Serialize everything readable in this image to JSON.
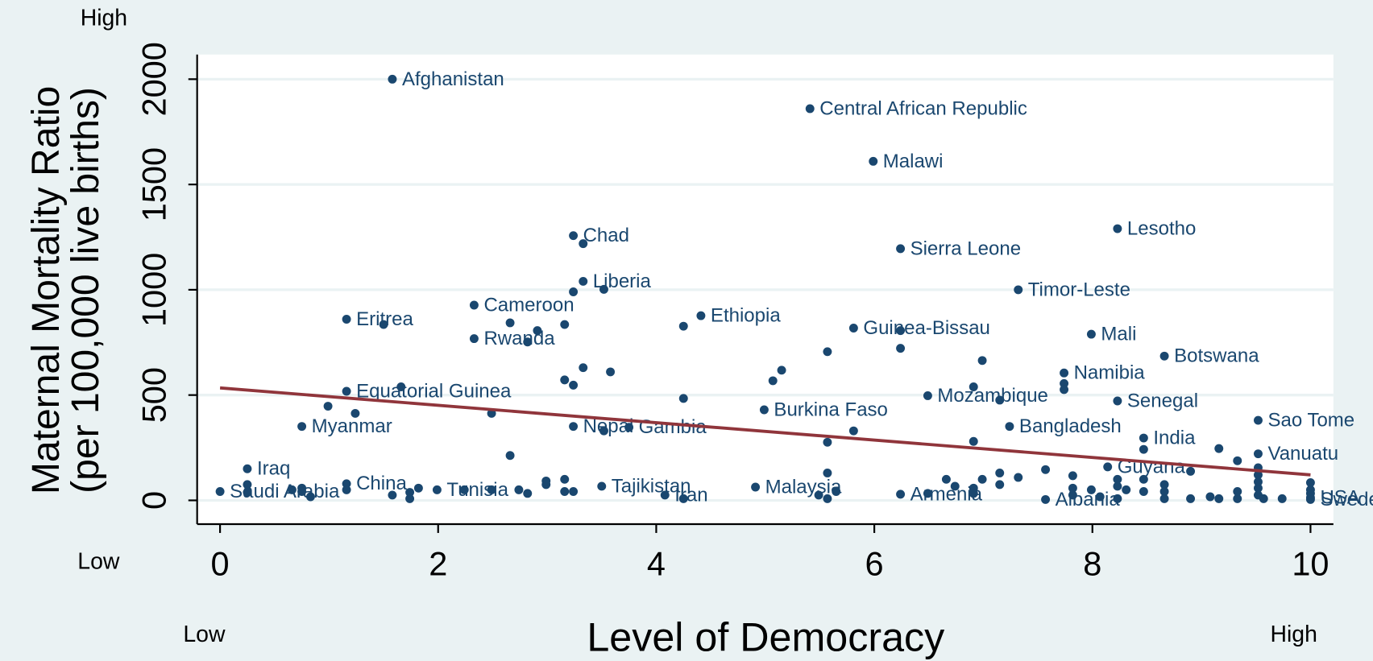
{
  "chart_data": {
    "type": "scatter",
    "xlabel": "Level of Democracy",
    "ylabel": [
      "Maternal Mortality Ratio",
      "(per 100,000 live births)"
    ],
    "annotations": {
      "y_high": "High",
      "y_low": "Low",
      "x_low": "Low",
      "x_high": "High"
    },
    "color": "#1a476f",
    "x": [
      1.58,
      5.41,
      5.99,
      3.24,
      8.23,
      6.24,
      3.33,
      7.32,
      1.16,
      2.33,
      4.41,
      5.81,
      2.33,
      7.99,
      7.74,
      8.66,
      1.16,
      6.49,
      8.23,
      3.75,
      4.99,
      7.24,
      0.75,
      9.52,
      8.47,
      8.14,
      9.52,
      3.24,
      0.25,
      1.16,
      1.99,
      3.5,
      4.91,
      4.08,
      0,
      6.24,
      7.57,
      10,
      10,
      3.33,
      1.5,
      2.66,
      2.91,
      2.82,
      3.16,
      3.24,
      3.52,
      4.25,
      6.24,
      6.24,
      5.57,
      6.99,
      7.74,
      7.74,
      3.16,
      3.24,
      3.33,
      3.58,
      1.66,
      0.99,
      1.24,
      2.49,
      4.25,
      5.07,
      5.15,
      6.91,
      7.15,
      5.81,
      5.57,
      6.91,
      3.52,
      2.66,
      9.16,
      9.33,
      8.9,
      8.47,
      9.52,
      0.25,
      0.25,
      0.66,
      0.75,
      0.75,
      0.83,
      1.16,
      1.58,
      1.74,
      1.74,
      1.82,
      2.24,
      2.49,
      2.74,
      2.82,
      2.99,
      2.99,
      3.16,
      3.16,
      3.24,
      4.25,
      5.49,
      5.57,
      5.65,
      5.57,
      6.49,
      6.66,
      6.74,
      6.91,
      6.91,
      6.99,
      7.15,
      7.15,
      7.32,
      7.57,
      7.82,
      7.82,
      7.82,
      7.99,
      8.07,
      8.23,
      8.23,
      8.23,
      8.31,
      8.47,
      8.47,
      8.66,
      8.66,
      8.66,
      8.9,
      9.08,
      9.16,
      9.33,
      9.33,
      9.52,
      9.52,
      9.57,
      9.74,
      10,
      10,
      10,
      9.52,
      9.52
    ],
    "y": [
      2000,
      1860,
      1610,
      1257,
      1290,
      1195,
      1040,
      1000,
      860,
      927,
      877,
      818,
      768,
      789,
      605,
      685,
      518,
      497,
      472,
      347,
      430,
      351,
      351,
      380,
      296,
      159,
      221,
      351,
      150,
      79,
      50,
      67,
      63,
      25,
      42,
      29,
      4,
      13,
      4,
      1219,
      835,
      843,
      806,
      752,
      835,
      990,
      1002,
      827,
      806,
      722,
      706,
      664,
      555,
      526,
      572,
      547,
      630,
      610,
      539,
      447,
      413,
      413,
      484,
      568,
      618,
      539,
      476,
      330,
      276,
      280,
      330,
      213,
      246,
      188,
      138,
      242,
      155,
      38,
      75,
      50,
      58,
      42,
      17,
      50,
      25,
      38,
      8,
      58,
      50,
      50,
      50,
      33,
      75,
      92,
      100,
      42,
      42,
      8,
      25,
      8,
      42,
      130,
      33,
      100,
      67,
      58,
      33,
      100,
      75,
      130,
      109,
      146,
      117,
      58,
      25,
      50,
      17,
      8,
      100,
      67,
      50,
      100,
      42,
      75,
      42,
      8,
      8,
      17,
      8,
      8,
      42,
      58,
      25,
      8,
      8,
      84,
      50,
      33,
      88,
      121
    ],
    "labels": [
      "Afghanistan",
      "Central African Republic",
      "Malawi",
      "Chad",
      "Lesotho",
      "Sierra Leone",
      "Liberia",
      "Timor-Leste",
      "Eritrea",
      "Cameroon",
      "Ethiopia",
      "Guinea-Bissau",
      "Rwanda",
      "Mali",
      "Namibia",
      "Botswana",
      "Equatorial Guinea",
      "Mozambique",
      "Senegal",
      "Gambia",
      "Burkina Faso",
      "Bangladesh",
      "Myanmar",
      "Sao Tome",
      "India",
      "Guyana",
      "Vanuatu",
      "Nepal",
      "Iraq",
      "China",
      "Tunisia",
      "Tajikistan",
      "Malaysia",
      "Iran",
      "Saudi Arabia",
      "Armenia",
      "Albania",
      "USA",
      "Sweden",
      null,
      null,
      null,
      null,
      null,
      null,
      null,
      null,
      null,
      null,
      null,
      null,
      null,
      null,
      null,
      null,
      null,
      null,
      null,
      null,
      null,
      null,
      null,
      null,
      null,
      null,
      null,
      null,
      null,
      null,
      null,
      null,
      null,
      null,
      null,
      null,
      null,
      null,
      null,
      null,
      null,
      null,
      null,
      null,
      null,
      null,
      null,
      null,
      null,
      null,
      null,
      null,
      null,
      null,
      null,
      null,
      null,
      null,
      null,
      null,
      null,
      null,
      null,
      null,
      null,
      null,
      null,
      null,
      null,
      null,
      null,
      null,
      null,
      null,
      null,
      null,
      null,
      null,
      null,
      null,
      null,
      null,
      null,
      null,
      null,
      null,
      null,
      null,
      null,
      null,
      null,
      null,
      null,
      null,
      null,
      null,
      null,
      null
    ],
    "fit_line": {
      "x": [
        0,
        10
      ],
      "y": [
        534,
        121
      ],
      "color": "#90353b"
    },
    "xlim": [
      -0.21,
      10.21
    ],
    "ylim": [
      -113,
      2117
    ],
    "xticks": [
      0,
      2,
      4,
      6,
      8,
      10
    ],
    "yticks": [
      0,
      500,
      1000,
      1500,
      2000
    ],
    "grid": true
  }
}
